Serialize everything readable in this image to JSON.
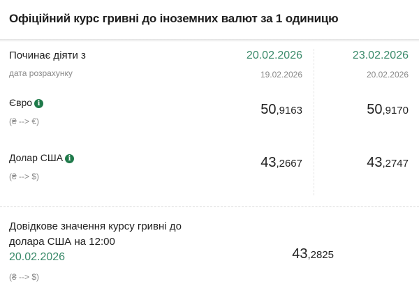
{
  "title": "Офіційний курс гривні до іноземних валют за 1 одиницю",
  "header": {
    "starts_label": "Починає діяти з",
    "calc_label": "дата розрахунку",
    "columns": [
      {
        "date": "20.02.2026",
        "calc_date": "19.02.2026"
      },
      {
        "date": "23.02.2026",
        "calc_date": "20.02.2026"
      }
    ]
  },
  "rates": [
    {
      "name": "Євро",
      "pair": "(₴ --> €)",
      "values": [
        {
          "int": "50",
          "dec": ",9163"
        },
        {
          "int": "50",
          "dec": ",9170"
        }
      ]
    },
    {
      "name": "Долар США",
      "pair": "(₴ --> $)",
      "values": [
        {
          "int": "43",
          "dec": ",2667"
        },
        {
          "int": "43",
          "dec": ",2747"
        }
      ]
    }
  ],
  "reference": {
    "line1": "Довідкове значення курсу гривні до",
    "line2": "долара США на 12:00",
    "date": "20.02.2026",
    "pair": "(₴ --> $)",
    "int": "43",
    "dec": ",2825"
  },
  "colors": {
    "accent": "#3a8a6a",
    "info_icon": "#1f7a4a"
  },
  "icons": {
    "info": "info-icon"
  }
}
